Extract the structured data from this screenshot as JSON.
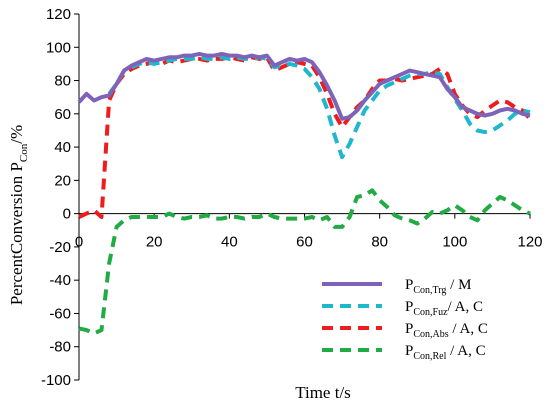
{
  "chart_data": {
    "type": "line",
    "xlabel": "Time   t/s",
    "ylabel": {
      "main": "PercentConversion  P",
      "subscript": "Con",
      "suffix": "/%"
    },
    "xlim": [
      0,
      120
    ],
    "ylim": [
      -100,
      120
    ],
    "x_ticks": [
      "0",
      "20",
      "40",
      "60",
      "80",
      "100",
      "120"
    ],
    "y_ticks": [
      "120",
      "100",
      "80",
      "60",
      "40",
      "20",
      "0",
      "-20",
      "-40",
      "-60",
      "-80",
      "-100"
    ],
    "grid": false,
    "legend_position": "bottom-right",
    "series": [
      {
        "name": "PCon,Trg / M",
        "legend": {
          "main": "P",
          "sub": "Con,Trg",
          "rest": " / M"
        },
        "color": "#7f63b8",
        "style": "solid",
        "x": [
          0,
          2,
          4,
          6,
          8,
          10,
          12,
          14,
          16,
          18,
          20,
          22,
          24,
          26,
          28,
          30,
          32,
          34,
          36,
          38,
          40,
          42,
          44,
          46,
          48,
          50,
          52,
          54,
          56,
          58,
          60,
          62,
          64,
          66,
          68,
          70,
          72,
          74,
          76,
          78,
          80,
          82,
          84,
          86,
          88,
          90,
          92,
          94,
          96,
          98,
          100,
          102,
          104,
          106,
          108,
          110,
          112,
          114,
          116,
          118,
          120
        ],
        "y": [
          67,
          72,
          68,
          70,
          71,
          78,
          86,
          89,
          91,
          93,
          92,
          93,
          94,
          94,
          95,
          95,
          96,
          95,
          95,
          96,
          95,
          95,
          94,
          95,
          94,
          95,
          89,
          91,
          93,
          92,
          93,
          91,
          85,
          77,
          68,
          57,
          58,
          62,
          68,
          73,
          78,
          80,
          82,
          84,
          86,
          85,
          84,
          83,
          82,
          75,
          70,
          64,
          62,
          60,
          59,
          60,
          62,
          63,
          62,
          60,
          59
        ]
      },
      {
        "name": "PCon,Fuz/ A, C",
        "legend": {
          "main": "P",
          "sub": "Con,Fuz",
          "rest": "/ A, C"
        },
        "color": "#1fb7cd",
        "style": "dashed",
        "x": [
          8,
          10,
          12,
          14,
          16,
          18,
          20,
          22,
          24,
          26,
          28,
          30,
          32,
          34,
          36,
          38,
          40,
          42,
          44,
          46,
          48,
          50,
          52,
          54,
          56,
          58,
          60,
          62,
          64,
          66,
          68,
          70,
          72,
          74,
          76,
          78,
          80,
          82,
          84,
          86,
          88,
          90,
          92,
          94,
          96,
          98,
          100,
          102,
          104,
          106,
          108,
          110,
          112,
          114,
          116,
          118,
          120
        ],
        "y": [
          72,
          78,
          86,
          88,
          90,
          91,
          90,
          91,
          92,
          93,
          93,
          93,
          94,
          93,
          93,
          94,
          93,
          94,
          93,
          93,
          94,
          93,
          88,
          89,
          90,
          89,
          87,
          82,
          75,
          63,
          47,
          34,
          42,
          52,
          62,
          68,
          74,
          77,
          79,
          81,
          83,
          84,
          84,
          85,
          84,
          76,
          69,
          62,
          54,
          50,
          49,
          50,
          53,
          56,
          60,
          62,
          61
        ]
      },
      {
        "name": "PCon,Abs / A, C",
        "legend": {
          "main": "P",
          "sub": "Con,Abs",
          "rest": " / A, C"
        },
        "color": "#ee1c1c",
        "style": "dashed",
        "x": [
          0,
          2,
          4,
          6,
          8,
          10,
          12,
          14,
          16,
          18,
          20,
          22,
          24,
          26,
          28,
          30,
          32,
          34,
          36,
          38,
          40,
          42,
          44,
          46,
          48,
          50,
          52,
          54,
          56,
          58,
          60,
          62,
          64,
          66,
          68,
          70,
          72,
          74,
          76,
          78,
          80,
          82,
          84,
          86,
          88,
          90,
          92,
          94,
          96,
          98,
          100,
          102,
          104,
          106,
          108,
          110,
          112,
          114,
          116,
          118,
          120
        ],
        "y": [
          -2,
          0,
          2,
          -2,
          68,
          78,
          84,
          87,
          89,
          90,
          91,
          90,
          92,
          91,
          92,
          93,
          93,
          92,
          93,
          93,
          94,
          93,
          92,
          94,
          93,
          94,
          86,
          88,
          90,
          91,
          90,
          89,
          82,
          72,
          60,
          52,
          58,
          64,
          68,
          75,
          80,
          80,
          81,
          80,
          81,
          82,
          83,
          84,
          87,
          84,
          72,
          65,
          60,
          58,
          62,
          65,
          68,
          67,
          64,
          62,
          57
        ]
      },
      {
        "name": "PCon,Rel / A, C",
        "legend": {
          "main": "P",
          "sub": "Con,Rel",
          "rest": " / A, C"
        },
        "color": "#22aa44",
        "style": "dashed",
        "x": [
          0,
          2,
          4,
          6,
          8,
          10,
          12,
          14,
          16,
          18,
          20,
          22,
          24,
          26,
          28,
          30,
          32,
          34,
          36,
          38,
          40,
          42,
          44,
          46,
          48,
          50,
          52,
          54,
          56,
          58,
          60,
          62,
          64,
          66,
          68,
          70,
          72,
          74,
          76,
          78,
          80,
          82,
          84,
          86,
          88,
          90,
          92,
          94,
          96,
          98,
          100,
          102,
          104,
          106,
          108,
          110,
          112,
          114,
          116,
          118,
          120
        ],
        "y": [
          -69,
          -70,
          -72,
          -70,
          -30,
          -8,
          -4,
          -2,
          -2,
          -2,
          -2,
          -2,
          0,
          -2,
          -3,
          -2,
          -2,
          -1,
          -3,
          -3,
          -2,
          -2,
          -3,
          -2,
          -2,
          0,
          -2,
          -3,
          -3,
          -3,
          -3,
          -2,
          -4,
          -2,
          -8,
          -8,
          -2,
          10,
          11,
          14,
          8,
          4,
          -1,
          -3,
          -4,
          -6,
          -3,
          1,
          0,
          2,
          5,
          2,
          -2,
          -4,
          2,
          6,
          10,
          8,
          5,
          2,
          0
        ]
      }
    ]
  }
}
